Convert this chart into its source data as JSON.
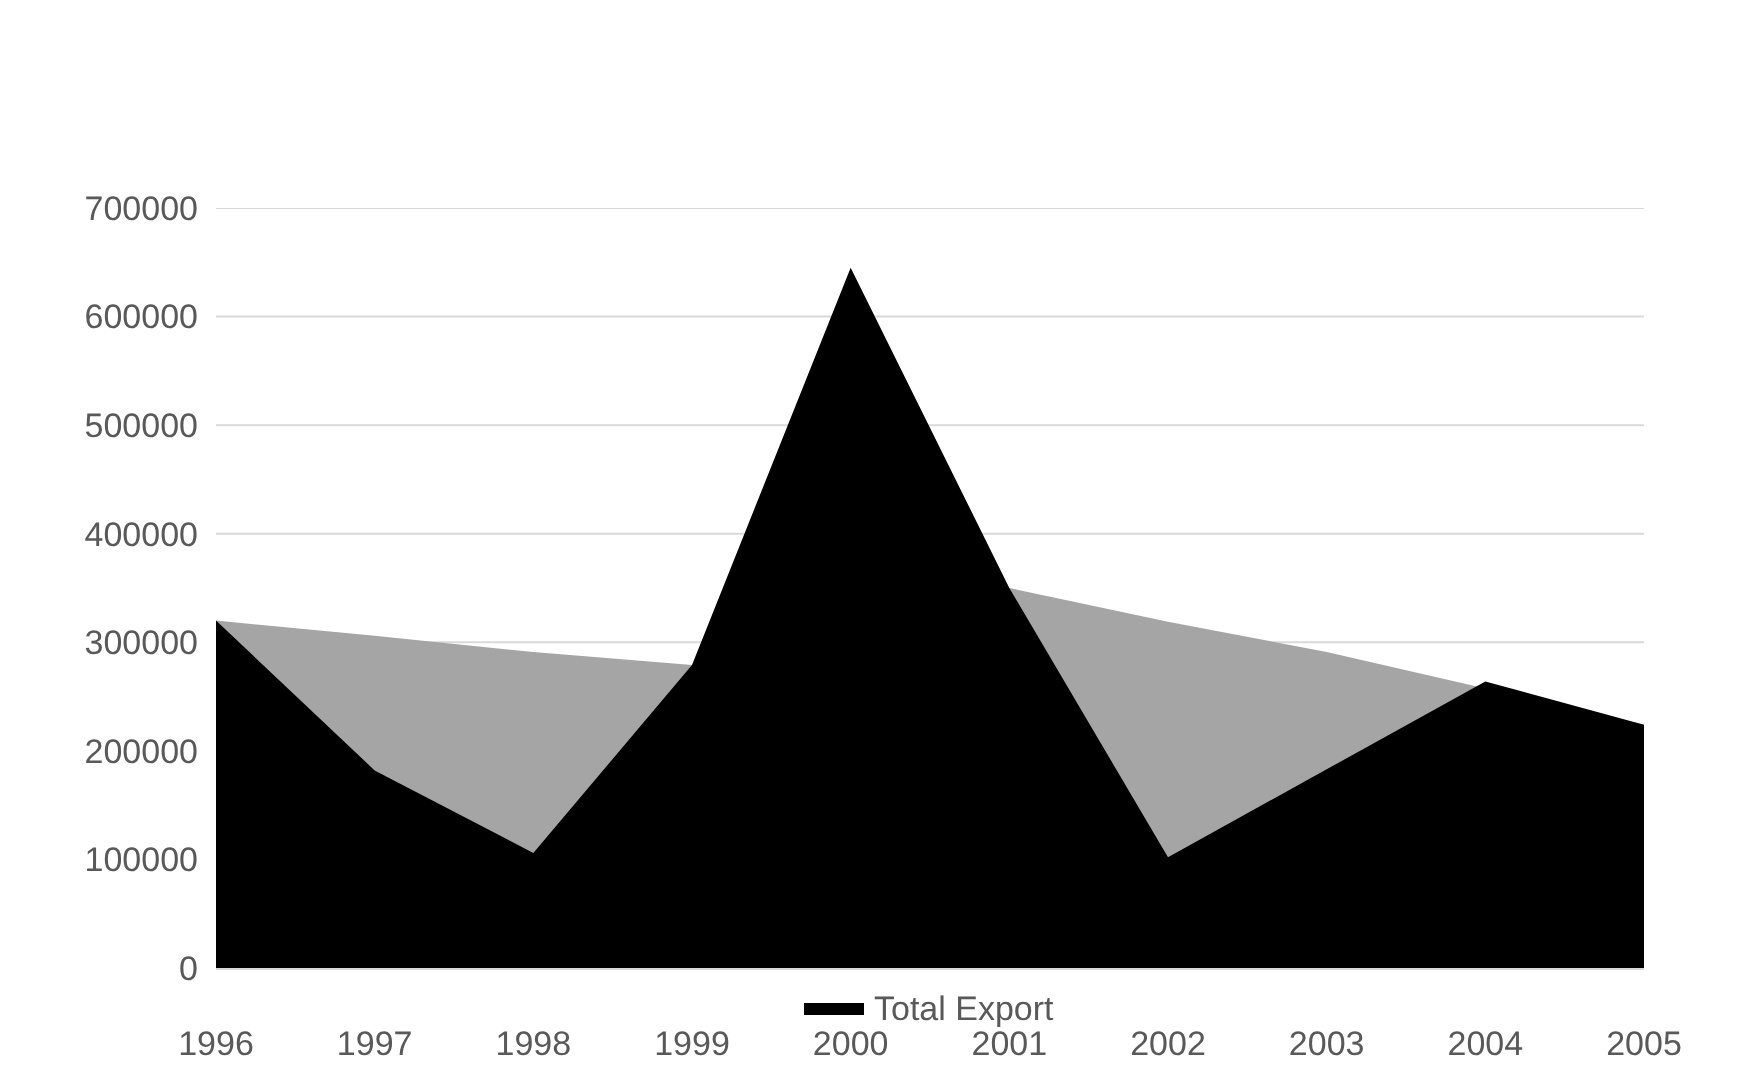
{
  "chart_data": {
    "type": "area",
    "x": [
      1996,
      1997,
      1998,
      1999,
      2000,
      2001,
      2002,
      2003,
      2004,
      2005
    ],
    "series": [
      {
        "color": "#a5a5a5",
        "values": [
          320000,
          306000,
          291000,
          279000,
          null,
          350000,
          319000,
          291000,
          null,
          224000
        ]
      },
      {
        "name": "Total Export",
        "color": "#000000",
        "values": [
          320000,
          182000,
          106000,
          279000,
          645000,
          350000,
          102000,
          183000,
          264000,
          224000
        ]
      }
    ],
    "xlim": [
      1996,
      2005
    ],
    "xticks": [
      1996,
      1997,
      1998,
      1999,
      2000,
      2001,
      2002,
      2003,
      2004,
      2005
    ],
    "ylim": [
      0,
      700000
    ],
    "yticks": [
      0,
      100000,
      200000,
      300000,
      400000,
      500000,
      600000,
      700000
    ],
    "grid": "y",
    "legend": "bottom"
  }
}
